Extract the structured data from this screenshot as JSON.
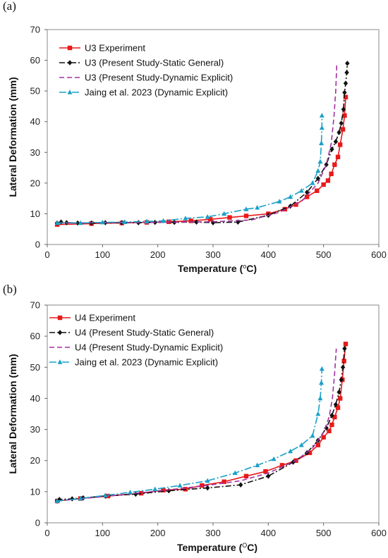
{
  "chart_data": [
    {
      "type": "line",
      "panel_label": "(a)",
      "xlabel": "Temperature (",
      "xlabel_sup": "o",
      "xlabel_unit": "C)",
      "ylabel": "Lateral Deformation (mm)",
      "xlim": [
        0,
        600
      ],
      "ylim": [
        0,
        70
      ],
      "xticks": [
        0,
        100,
        200,
        300,
        400,
        500,
        600
      ],
      "yticks": [
        0,
        10,
        20,
        30,
        40,
        50,
        60,
        70
      ],
      "grid": false,
      "legend_position": "top-left",
      "series": [
        {
          "name": "U3 Experiment",
          "color": "#e8191a",
          "dash": "",
          "marker": "square",
          "points": [
            [
              18,
              6.5
            ],
            [
              80,
              6.8
            ],
            [
              135,
              7.0
            ],
            [
              180,
              7.2
            ],
            [
              220,
              7.4
            ],
            [
              260,
              7.7
            ],
            [
              295,
              8.2
            ],
            [
              330,
              8.8
            ],
            [
              360,
              9.3
            ],
            [
              400,
              10.0
            ],
            [
              430,
              11.5
            ],
            [
              450,
              13.0
            ],
            [
              470,
              15.5
            ],
            [
              488,
              17.5
            ],
            [
              500,
              19.5
            ],
            [
              508,
              20.8
            ],
            [
              514,
              23.0
            ],
            [
              520,
              26.0
            ],
            [
              526,
              28.5
            ],
            [
              530,
              32.5
            ],
            [
              535,
              37.5
            ],
            [
              538,
              42.0
            ],
            [
              540,
              48.0
            ]
          ]
        },
        {
          "name": "U3 (Present Study-Static General)",
          "color": "#111111",
          "dash": "8,3,2,3",
          "marker": "diamond",
          "points": [
            [
              18,
              7.0
            ],
            [
              25,
              7.3
            ],
            [
              35,
              7.1
            ],
            [
              55,
              7.0
            ],
            [
              80,
              7.0
            ],
            [
              105,
              7.1
            ],
            [
              135,
              7.1
            ],
            [
              165,
              7.1
            ],
            [
              195,
              7.2
            ],
            [
              230,
              7.2
            ],
            [
              270,
              7.3
            ],
            [
              300,
              7.1
            ],
            [
              345,
              7.3
            ],
            [
              400,
              9.5
            ],
            [
              440,
              12.5
            ],
            [
              470,
              17.0
            ],
            [
              490,
              21.5
            ],
            [
              505,
              26.0
            ],
            [
              515,
              31.0
            ],
            [
              522,
              33.5
            ],
            [
              528,
              36.5
            ],
            [
              532,
              39.5
            ],
            [
              536,
              44.0
            ],
            [
              538,
              49.5
            ],
            [
              540,
              52.5
            ],
            [
              542,
              56.0
            ],
            [
              543,
              59.0
            ]
          ]
        },
        {
          "name": "U3 (Present Study-Dynamic Explicit)",
          "color": "#a030a0",
          "dash": "7,4",
          "marker": "none",
          "points": [
            [
              18,
              7.0
            ],
            [
              100,
              7.1
            ],
            [
              200,
              7.2
            ],
            [
              300,
              7.4
            ],
            [
              370,
              8.0
            ],
            [
              420,
              10.5
            ],
            [
              460,
              14.0
            ],
            [
              490,
              20.0
            ],
            [
              505,
              26.0
            ],
            [
              514,
              33.0
            ],
            [
              519,
              42.0
            ],
            [
              522,
              50.0
            ],
            [
              524,
              59.0
            ]
          ]
        },
        {
          "name": "Jaing et al. 2023 (Dynamic Explicit)",
          "color": "#1aa0c8",
          "dash": "10,3,2,3",
          "marker": "triangle",
          "points": [
            [
              18,
              7.0
            ],
            [
              60,
              7.0
            ],
            [
              100,
              7.2
            ],
            [
              140,
              7.3
            ],
            [
              180,
              7.5
            ],
            [
              210,
              7.7
            ],
            [
              250,
              8.5
            ],
            [
              290,
              9.0
            ],
            [
              320,
              10.0
            ],
            [
              360,
              11.5
            ],
            [
              380,
              12.0
            ],
            [
              420,
              14.0
            ],
            [
              440,
              15.5
            ],
            [
              460,
              17.5
            ],
            [
              480,
              20.0
            ],
            [
              490,
              24.0
            ],
            [
              494,
              27.0
            ],
            [
              496,
              33.0
            ],
            [
              497,
              38.0
            ],
            [
              497,
              42.0
            ]
          ]
        }
      ]
    },
    {
      "type": "line",
      "panel_label": "(b)",
      "xlabel": "Temperature (",
      "xlabel_sup": "O",
      "xlabel_unit": "C)",
      "ylabel": "Lateral Deformation (mm)",
      "xlim": [
        0,
        600
      ],
      "ylim": [
        0,
        70
      ],
      "xticks": [
        0,
        100,
        200,
        300,
        400,
        500,
        600
      ],
      "yticks": [
        0,
        10,
        20,
        30,
        40,
        50,
        60,
        70
      ],
      "grid": false,
      "legend_position": "top-left",
      "series": [
        {
          "name": "U4 Experiment",
          "color": "#e8191a",
          "dash": "",
          "marker": "square",
          "points": [
            [
              18,
              7.0
            ],
            [
              60,
              7.8
            ],
            [
              110,
              8.6
            ],
            [
              170,
              9.5
            ],
            [
              210,
              10.5
            ],
            [
              250,
              10.8
            ],
            [
              280,
              12.0
            ],
            [
              320,
              13.2
            ],
            [
              360,
              15.0
            ],
            [
              395,
              16.5
            ],
            [
              425,
              18.5
            ],
            [
              450,
              20.0
            ],
            [
              475,
              22.5
            ],
            [
              490,
              25.0
            ],
            [
              500,
              27.5
            ],
            [
              510,
              29.5
            ],
            [
              515,
              31.5
            ],
            [
              520,
              34.0
            ],
            [
              526,
              37.0
            ],
            [
              530,
              40.0
            ],
            [
              534,
              46.0
            ],
            [
              537,
              52.0
            ],
            [
              540,
              57.5
            ]
          ]
        },
        {
          "name": "U4 (Present Study-Static General)",
          "color": "#111111",
          "dash": "8,3,2,3",
          "marker": "diamond",
          "points": [
            [
              18,
              7.0
            ],
            [
              22,
              7.5
            ],
            [
              45,
              7.7
            ],
            [
              65,
              8.0
            ],
            [
              105,
              8.6
            ],
            [
              160,
              9.2
            ],
            [
              220,
              10.3
            ],
            [
              290,
              11.2
            ],
            [
              350,
              12.2
            ],
            [
              400,
              15.0
            ],
            [
              445,
              19.5
            ],
            [
              470,
              22.5
            ],
            [
              490,
              26.5
            ],
            [
              505,
              30.5
            ],
            [
              515,
              34.5
            ],
            [
              522,
              38.0
            ],
            [
              528,
              42.0
            ],
            [
              532,
              46.0
            ],
            [
              535,
              50.0
            ],
            [
              538,
              56.0
            ]
          ]
        },
        {
          "name": "U4 (Present Study-Dynamic Explicit)",
          "color": "#a030a0",
          "dash": "7,4",
          "marker": "none",
          "points": [
            [
              18,
              7.0
            ],
            [
              100,
              8.4
            ],
            [
              200,
              10.2
            ],
            [
              280,
              11.8
            ],
            [
              350,
              13.5
            ],
            [
              400,
              16.0
            ],
            [
              450,
              20.0
            ],
            [
              480,
              24.0
            ],
            [
              500,
              29.0
            ],
            [
              510,
              34.0
            ],
            [
              516,
              40.0
            ],
            [
              520,
              48.0
            ],
            [
              523,
              56.0
            ]
          ]
        },
        {
          "name": "Jaing et al. 2023 (Dynamic Explicit)",
          "color": "#1aa0c8",
          "dash": "10,3,2,3",
          "marker": "triangle",
          "points": [
            [
              18,
              7.0
            ],
            [
              60,
              7.8
            ],
            [
              105,
              8.8
            ],
            [
              150,
              9.8
            ],
            [
              195,
              10.8
            ],
            [
              240,
              12.0
            ],
            [
              290,
              13.5
            ],
            [
              340,
              16.0
            ],
            [
              380,
              18.5
            ],
            [
              410,
              20.5
            ],
            [
              440,
              23.0
            ],
            [
              460,
              25.0
            ],
            [
              480,
              28.0
            ],
            [
              490,
              35.0
            ],
            [
              494,
              40.0
            ],
            [
              496,
              45.0
            ],
            [
              497,
              49.5
            ]
          ]
        }
      ]
    }
  ]
}
